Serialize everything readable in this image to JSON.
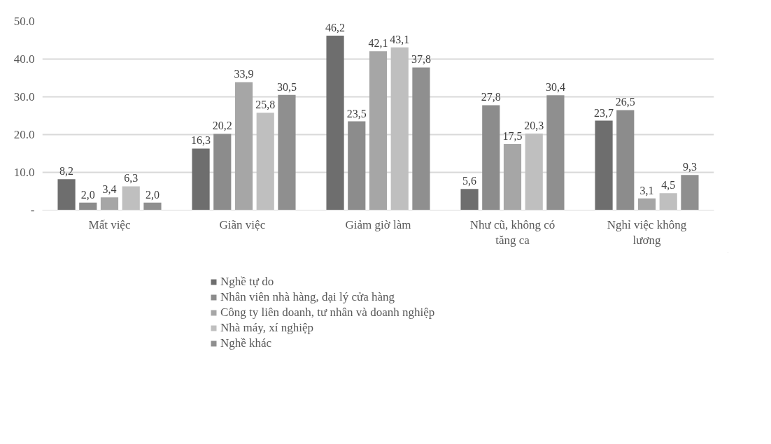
{
  "chart_data": {
    "type": "bar",
    "categories": [
      "Mất việc",
      "Giãn  việc",
      "Giảm giờ làm",
      "Như cũ, không có tăng ca",
      "Nghỉ việc không lương"
    ],
    "series": [
      {
        "name": "Nghề tự do",
        "color": "#6e6e6e",
        "values": [
          8.2,
          16.3,
          46.2,
          5.6,
          23.7
        ],
        "value_labels": [
          "8,2",
          "16,3",
          "46,2",
          "5,6",
          "23,7"
        ]
      },
      {
        "name": "Nhân viên nhà hàng, đại lý cửa hàng",
        "color": "#8c8c8c",
        "values": [
          2.0,
          20.2,
          23.5,
          27.8,
          26.5
        ],
        "value_labels": [
          "2,0",
          "20,2",
          "23,5",
          "27,8",
          "26,5"
        ]
      },
      {
        "name": "Công ty liên doanh, tư nhân và doanh nghiệp",
        "color": "#a6a6a6",
        "values": [
          3.4,
          33.9,
          42.1,
          17.5,
          3.1
        ],
        "value_labels": [
          "3,4",
          "33,9",
          "42,1",
          "17,5",
          "3,1"
        ]
      },
      {
        "name": "Nhà máy, xí nghiệp",
        "color": "#bfbfbf",
        "values": [
          6.3,
          25.8,
          43.1,
          20.3,
          4.5
        ],
        "value_labels": [
          "6,3",
          "25,8",
          "43,1",
          "20,3",
          "4,5"
        ]
      },
      {
        "name": "Nghề khác",
        "color": "#8f8f8f",
        "values": [
          2.0,
          30.5,
          37.8,
          30.4,
          9.3
        ],
        "value_labels": [
          "2,0",
          "30,5",
          "37,8",
          "30,4",
          "9,3"
        ]
      }
    ],
    "ylim": [
      0,
      50
    ],
    "yticks": [
      {
        "value": 0,
        "label": "-"
      },
      {
        "value": 10,
        "label": "10.0"
      },
      {
        "value": 20,
        "label": "20.0"
      },
      {
        "value": 30,
        "label": "30.0"
      },
      {
        "value": 40,
        "label": "40.0"
      },
      {
        "value": 50,
        "label": "50.0"
      }
    ],
    "grid": "y",
    "legend": "bottom"
  }
}
